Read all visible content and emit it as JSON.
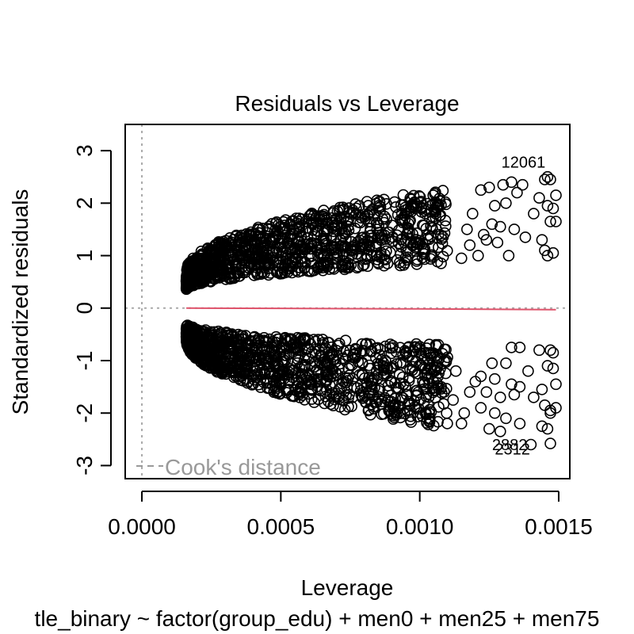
{
  "chart_data": {
    "type": "scatter",
    "title": "Residuals vs Leverage",
    "xlabel": "Leverage",
    "ylabel": "Standardized residuals",
    "subtitle": "tle_binary ~ factor(group_edu) + men0 + men25 + men75",
    "xlim": [
      -6e-05,
      0.00154
    ],
    "ylim": [
      -3.25,
      3.5
    ],
    "x_ticks": [
      0.0,
      0.0005,
      0.001,
      0.0015
    ],
    "x_tick_labels": [
      "0.0000",
      "0.0005",
      "0.0010",
      "0.0015"
    ],
    "y_ticks": [
      -3,
      -2,
      -1,
      0,
      1,
      2,
      3
    ],
    "y_tick_labels": [
      "-3",
      "-2",
      "-1",
      "0",
      "1",
      "2",
      "3"
    ],
    "grid": false,
    "reference_lines": {
      "h_zero": 0,
      "v_zero": 0,
      "style": "dotted",
      "color": "#aaaaaa"
    },
    "legend": {
      "label": "Cook's distance",
      "placement": "bottom-left",
      "color": "#999999"
    },
    "smoother": {
      "color": "#df536b",
      "x": [
        0.00016,
        0.0005,
        0.001,
        0.00149
      ],
      "y": [
        0.0,
        -0.005,
        -0.015,
        -0.03
      ]
    },
    "point_labels": [
      {
        "text": "12061",
        "x": 0.001475,
        "y": 2.78
      },
      {
        "text": "2882",
        "x": 0.00141,
        "y": -2.6
      },
      {
        "text": "2312",
        "x": 0.00142,
        "y": -2.68
      }
    ],
    "series": [
      {
        "marker": "open-circle",
        "color": "#000000",
        "dense_bands": [
          {
            "branch": "upper",
            "x_min": 0.00016,
            "x_max": 0.0011,
            "y_at_min": [
              0.35,
              0.7
            ],
            "y_at_max": [
              0.85,
              2.3
            ]
          },
          {
            "branch": "lower",
            "x_min": 0.00016,
            "x_max": 0.0011,
            "y_at_min": [
              -0.3,
              -0.65
            ],
            "y_at_max": [
              -0.7,
              -2.3
            ]
          }
        ],
        "sparse_points": [
          [
            0.00122,
            2.25
          ],
          [
            0.00125,
            2.3
          ],
          [
            0.0013,
            2.35
          ],
          [
            0.00133,
            2.4
          ],
          [
            0.00137,
            2.35
          ],
          [
            0.00145,
            2.45
          ],
          [
            0.00146,
            2.5
          ],
          [
            0.00147,
            2.45
          ],
          [
            0.00149,
            2.15
          ],
          [
            0.00143,
            2.1
          ],
          [
            0.00127,
            1.95
          ],
          [
            0.00131,
            2.0
          ],
          [
            0.00135,
            2.2
          ],
          [
            0.00141,
            1.8
          ],
          [
            0.00146,
            1.95
          ],
          [
            0.00148,
            1.9
          ],
          [
            0.00126,
            1.6
          ],
          [
            0.00129,
            1.55
          ],
          [
            0.00134,
            1.5
          ],
          [
            0.00138,
            1.35
          ],
          [
            0.00144,
            1.3
          ],
          [
            0.00147,
            1.65
          ],
          [
            0.00149,
            1.65
          ],
          [
            0.00123,
            1.4
          ],
          [
            0.00128,
            1.25
          ],
          [
            0.00132,
            1.0
          ],
          [
            0.00145,
            1.1
          ],
          [
            0.00146,
            1.0
          ],
          [
            0.00148,
            1.05
          ],
          [
            0.00121,
            1.0
          ],
          [
            0.00118,
            1.2
          ],
          [
            0.00115,
            0.95
          ],
          [
            0.00117,
            1.5
          ],
          [
            0.00119,
            1.8
          ],
          [
            0.00124,
            1.3
          ],
          [
            0.00133,
            -0.75
          ],
          [
            0.00136,
            -0.75
          ],
          [
            0.00143,
            -0.8
          ],
          [
            0.00147,
            -0.8
          ],
          [
            0.00148,
            -0.85
          ],
          [
            0.00126,
            -1.05
          ],
          [
            0.00131,
            -1.05
          ],
          [
            0.00139,
            -1.2
          ],
          [
            0.00146,
            -1.1
          ],
          [
            0.00148,
            -1.15
          ],
          [
            0.00122,
            -1.3
          ],
          [
            0.00127,
            -1.35
          ],
          [
            0.00133,
            -1.45
          ],
          [
            0.00136,
            -1.5
          ],
          [
            0.00144,
            -1.55
          ],
          [
            0.00149,
            -1.45
          ],
          [
            0.00124,
            -1.6
          ],
          [
            0.00129,
            -1.7
          ],
          [
            0.00134,
            -1.65
          ],
          [
            0.00141,
            -1.7
          ],
          [
            0.00145,
            -1.85
          ],
          [
            0.00147,
            -1.95
          ],
          [
            0.00149,
            -1.9
          ],
          [
            0.00122,
            -1.9
          ],
          [
            0.00127,
            -2.0
          ],
          [
            0.00131,
            -2.1
          ],
          [
            0.00136,
            -2.2
          ],
          [
            0.00144,
            -2.25
          ],
          [
            0.00146,
            -2.3
          ],
          [
            0.00147,
            -2.0
          ],
          [
            0.00125,
            -2.3
          ],
          [
            0.00129,
            -2.35
          ],
          [
            0.0014,
            -2.6
          ],
          [
            0.00147,
            -2.58
          ],
          [
            0.00115,
            -2.2
          ],
          [
            0.00118,
            -1.6
          ],
          [
            0.0012,
            -1.4
          ],
          [
            0.00113,
            -1.2
          ],
          [
            0.00116,
            -2.0
          ],
          [
            0.00112,
            -1.75
          ]
        ]
      }
    ]
  }
}
